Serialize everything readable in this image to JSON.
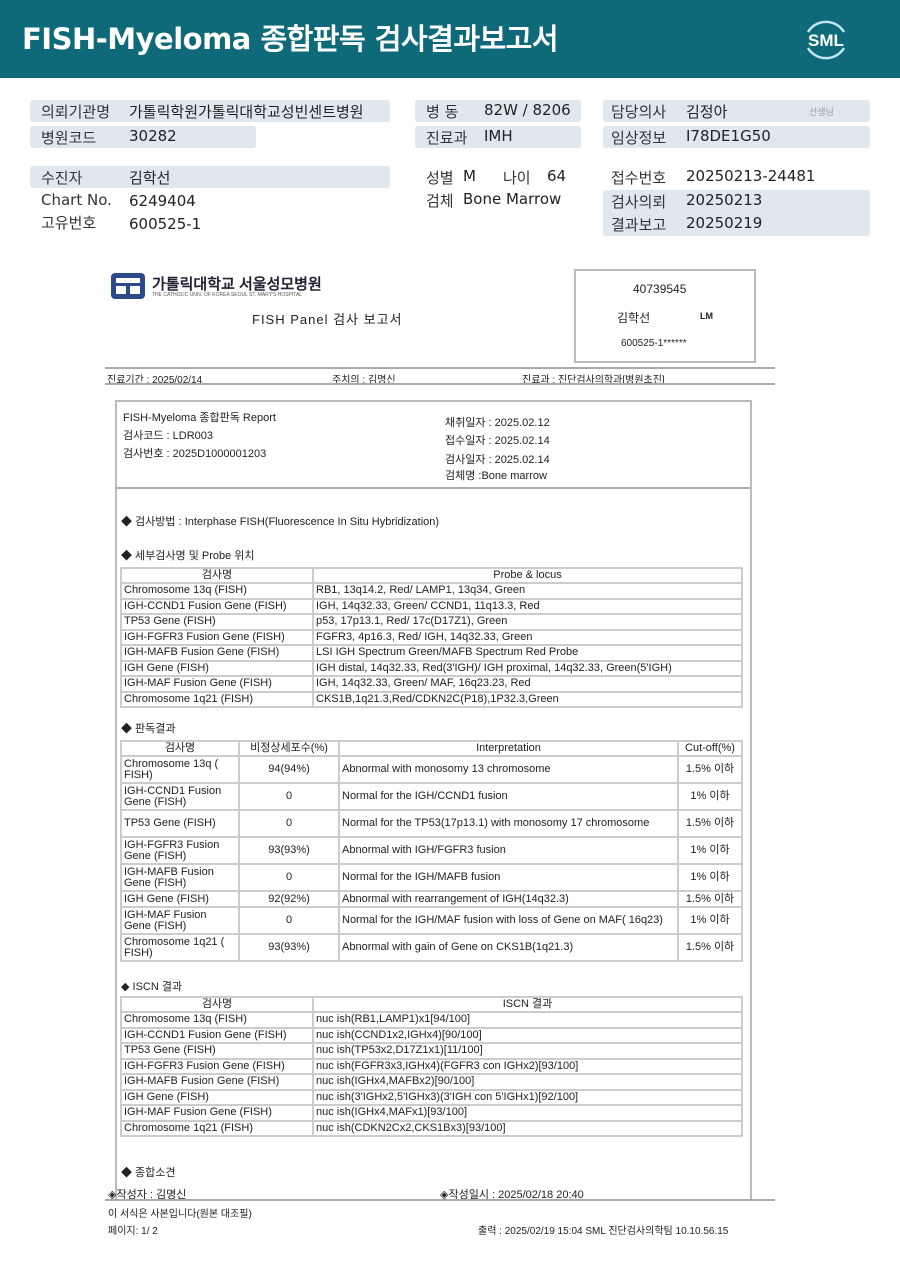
{
  "header": {
    "title": "FISH-Myeloma 종합판독 검사결과보고서",
    "logo_text": "SML",
    "bg_color": "#0e6a78"
  },
  "info": {
    "institution_label": "의뢰기관명",
    "institution": "가톨릭학원가톨릭대학교성빈센트병원",
    "hospital_code_label": "병원코드",
    "hospital_code": "30282",
    "ward_label": "병  동",
    "ward": "82W / 8206",
    "dept_label": "진료과",
    "dept": "IMH",
    "doctor_label": "담당의사",
    "doctor": "김정아",
    "doctor_suffix": "선생님",
    "clinical_label": "임상정보",
    "clinical": "I78DE1G50",
    "patient_label": "수진자",
    "patient": "김학선",
    "chart_label": "Chart No.",
    "chart": "6249404",
    "uid_label": "고유번호",
    "uid": "600525-1",
    "sex_label": "성별",
    "sex": "M",
    "age_label": "나이",
    "age": "64",
    "specimen_label": "검체",
    "specimen": "Bone Marrow",
    "receipt_label": "접수번호",
    "receipt": "20250213-24481",
    "request_label": "검사의뢰",
    "request": "20250213",
    "report_label": "결과보고",
    "report": "20250219"
  },
  "doc": {
    "hospital_name": "가톨릭대학교 서울성모병원",
    "hospital_eng": "THE CATHOLIC UNIV. OF KOREA SEOUL ST. MARY'S HOSPITAL",
    "title": "FISH Panel 검사 보고서",
    "id_box": {
      "number": "40739545",
      "name": "김학선",
      "code": "LM",
      "rrn": "600525-1******"
    },
    "period": "진료기간 : 2025/02/14",
    "attending": "주치의 : 김명신",
    "department": "진료과 : 진단검사의학과[병원초진]",
    "report_name": "FISH-Myeloma 종합판독 Report",
    "test_code": "검사코드 : LDR003",
    "test_no": "검사번호 : 2025D1000001203",
    "collected": "채취일자 : 2025.02.12",
    "received": "접수일자 : 2025.02.14",
    "tested": "검사일자 : 2025.02.14",
    "specimen": "검체명 :Bone marrow",
    "method": "◆ 검사방법 : Interphase FISH(Fluorescence In Situ Hybridization)",
    "probe_title": "◆ 세부검사명 및 Probe 위치",
    "probe_headers": [
      "검사명",
      "Probe & locus"
    ],
    "probe_rows": [
      [
        "Chromosome 13q (FISH)",
        "RB1, 13q14.2, Red/ LAMP1, 13q34, Green"
      ],
      [
        "IGH-CCND1 Fusion Gene (FISH)",
        "IGH, 14q32.33, Green/ CCND1, 11q13.3, Red"
      ],
      [
        "TP53 Gene (FISH)",
        "p53, 17p13.1, Red/ 17c(D17Z1), Green"
      ],
      [
        "IGH-FGFR3 Fusion Gene (FISH)",
        "FGFR3, 4p16.3, Red/ IGH, 14q32.33, Green"
      ],
      [
        "IGH-MAFB Fusion Gene (FISH)",
        "LSI IGH Spectrum Green/MAFB Spectrum Red Probe"
      ],
      [
        "IGH Gene (FISH)",
        "IGH distal, 14q32.33, Red(3'IGH)/ IGH proximal, 14q32.33, Green(5'IGH)"
      ],
      [
        "IGH-MAF Fusion Gene (FISH)",
        "IGH, 14q32.33, Green/ MAF, 16q23.23, Red"
      ],
      [
        "Chromosome 1q21 (FISH)",
        "CKS1B,1q21.3,Red/CDKN2C(P18),1P32.3,Green"
      ]
    ],
    "result_title": "◆ 판독결과",
    "result_headers": [
      "검사명",
      "비정상세포수(%)",
      "Interpretation",
      "Cut-off(%)"
    ],
    "result_rows": [
      [
        "Chromosome 13q ( FISH)",
        "94(94%)",
        "Abnormal with monosomy 13 chromosome",
        "1.5% 이하"
      ],
      [
        "IGH-CCND1 Fusion Gene (FISH)",
        "0",
        "Normal for the IGH/CCND1 fusion",
        "1% 이하"
      ],
      [
        "TP53 Gene (FISH)",
        "0",
        "Normal for the TP53(17p13.1) with monosomy 17 chromosome",
        "1.5% 이하"
      ],
      [
        "IGH-FGFR3 Fusion Gene (FISH)",
        "93(93%)",
        "Abnormal with IGH/FGFR3 fusion",
        "1% 이하"
      ],
      [
        "IGH-MAFB Fusion Gene (FISH)",
        "0",
        "Normal for the IGH/MAFB fusion",
        "1% 이하"
      ],
      [
        "IGH Gene (FISH)",
        "92(92%)",
        "Abnormal with rearrangement of IGH(14q32.3)",
        "1.5% 이하"
      ],
      [
        "IGH-MAF Fusion Gene (FISH)",
        "0",
        "Normal for the IGH/MAF fusion with loss of Gene on MAF( 16q23)",
        "1% 이하"
      ],
      [
        "Chromosome 1q21 ( FISH)",
        "93(93%)",
        "Abnormal with gain of Gene on CKS1B(1q21.3)",
        "1.5% 이하"
      ]
    ],
    "iscn_title": "◆ ISCN 결과",
    "iscn_headers": [
      "검사명",
      "ISCN 결과"
    ],
    "iscn_rows": [
      [
        "Chromosome 13q (FISH)",
        "nuc ish(RB1,LAMP1)x1[94/100]"
      ],
      [
        "IGH-CCND1 Fusion Gene (FISH)",
        "nuc ish(CCND1x2,IGHx4)[90/100]"
      ],
      [
        "TP53 Gene (FISH)",
        "nuc ish(TP53x2,D17Z1x1)[11/100]"
      ],
      [
        "IGH-FGFR3 Fusion Gene (FISH)",
        "nuc ish(FGFR3x3,IGHx4)(FGFR3 con IGHx2)[93/100]"
      ],
      [
        "IGH-MAFB Fusion Gene (FISH)",
        "nuc ish(IGHx4,MAFBx2)[90/100]"
      ],
      [
        "IGH Gene (FISH)",
        "nuc ish(3'IGHx2,5'IGHx3)(3'IGH con 5'IGHx1)[92/100]"
      ],
      [
        "IGH-MAF Fusion Gene (FISH)",
        "nuc ish(IGHx4,MAFx1)[93/100]"
      ],
      [
        "Chromosome 1q21 (FISH)",
        "nuc ish(CDKN2Cx2,CKS1Bx3)[93/100]"
      ]
    ],
    "summary_title": "◆ 종합소견",
    "author": "◈작성자   : 김명신",
    "written": "◈작성일시 : 2025/02/18 20:40",
    "copy_note": "이 서식은 사본입니다(원본 대조필)",
    "page": "페이지:   1/   2",
    "printed": "출력 : 2025/02/19 15:04 SML 진단검사의학팀 10.10.56.15"
  }
}
